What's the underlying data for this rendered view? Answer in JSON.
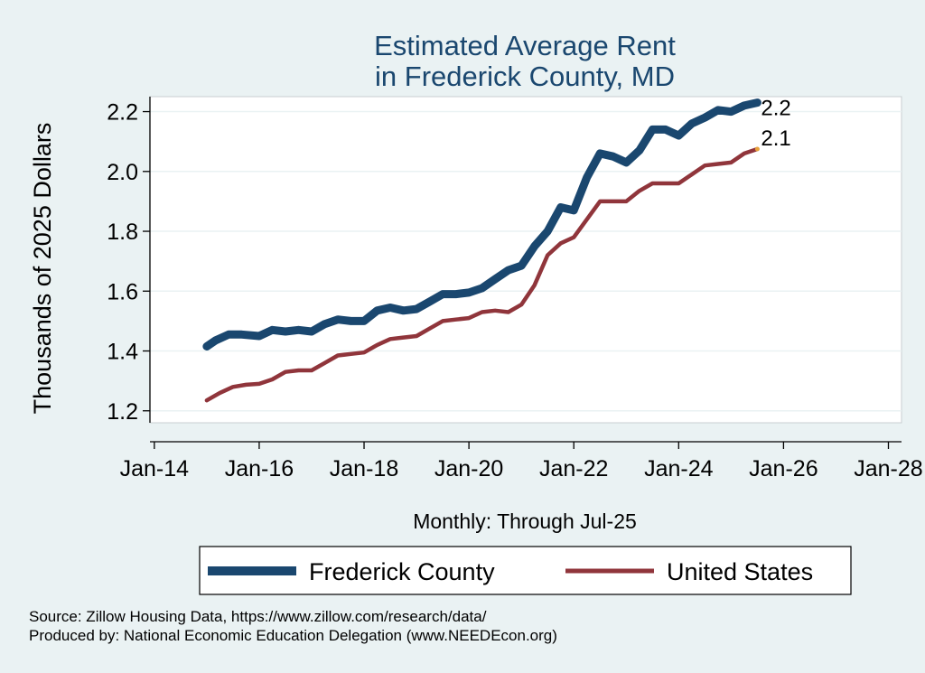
{
  "chart_data": {
    "type": "line",
    "title": [
      "Estimated Average Rent",
      "in Frederick County, MD"
    ],
    "ylabel": "Thousands of 2025 Dollars",
    "xlabel": "Monthly: Through Jul-25",
    "ylim": [
      1.16,
      2.25
    ],
    "yticks": [
      1.2,
      1.4,
      1.6,
      1.8,
      2.0,
      2.2
    ],
    "ytick_labels": [
      "1.2",
      "1.4",
      "1.6",
      "1.8",
      "2.0",
      "2.2"
    ],
    "xlim": [
      "2013-12",
      "2028-04"
    ],
    "xticks": [
      "2014-01",
      "2016-01",
      "2018-01",
      "2020-01",
      "2022-01",
      "2024-01",
      "2026-01",
      "2028-01"
    ],
    "xtick_labels": [
      "Jan-14",
      "Jan-16",
      "Jan-18",
      "Jan-20",
      "Jan-22",
      "Jan-24",
      "Jan-26",
      "Jan-28"
    ],
    "grid": true,
    "legend_position": "bottom",
    "series": [
      {
        "name": "Frederick County",
        "color": "#1a476f",
        "end_label": "2.2",
        "points": [
          [
            "2015-01",
            1.415
          ],
          [
            "2015-03",
            1.435
          ],
          [
            "2015-06",
            1.455
          ],
          [
            "2015-09",
            1.455
          ],
          [
            "2016-01",
            1.45
          ],
          [
            "2016-04",
            1.47
          ],
          [
            "2016-07",
            1.465
          ],
          [
            "2016-10",
            1.47
          ],
          [
            "2017-01",
            1.465
          ],
          [
            "2017-04",
            1.49
          ],
          [
            "2017-07",
            1.505
          ],
          [
            "2017-10",
            1.5
          ],
          [
            "2018-01",
            1.5
          ],
          [
            "2018-04",
            1.535
          ],
          [
            "2018-07",
            1.545
          ],
          [
            "2018-10",
            1.535
          ],
          [
            "2019-01",
            1.54
          ],
          [
            "2019-04",
            1.565
          ],
          [
            "2019-07",
            1.59
          ],
          [
            "2019-10",
            1.59
          ],
          [
            "2020-01",
            1.595
          ],
          [
            "2020-04",
            1.61
          ],
          [
            "2020-07",
            1.64
          ],
          [
            "2020-10",
            1.67
          ],
          [
            "2021-01",
            1.685
          ],
          [
            "2021-04",
            1.75
          ],
          [
            "2021-07",
            1.8
          ],
          [
            "2021-10",
            1.88
          ],
          [
            "2022-01",
            1.87
          ],
          [
            "2022-04",
            1.98
          ],
          [
            "2022-07",
            2.06
          ],
          [
            "2022-10",
            2.05
          ],
          [
            "2023-01",
            2.03
          ],
          [
            "2023-04",
            2.07
          ],
          [
            "2023-07",
            2.14
          ],
          [
            "2023-10",
            2.14
          ],
          [
            "2024-01",
            2.12
          ],
          [
            "2024-04",
            2.16
          ],
          [
            "2024-07",
            2.18
          ],
          [
            "2024-10",
            2.205
          ],
          [
            "2025-01",
            2.2
          ],
          [
            "2025-04",
            2.22
          ],
          [
            "2025-07",
            2.23
          ]
        ]
      },
      {
        "name": "United States",
        "color": "#90353b",
        "end_marker_color": "#e8a13a",
        "end_label": "2.1",
        "points": [
          [
            "2015-01",
            1.235
          ],
          [
            "2015-04",
            1.26
          ],
          [
            "2015-07",
            1.28
          ],
          [
            "2015-10",
            1.287
          ],
          [
            "2016-01",
            1.29
          ],
          [
            "2016-04",
            1.305
          ],
          [
            "2016-07",
            1.33
          ],
          [
            "2016-10",
            1.335
          ],
          [
            "2017-01",
            1.335
          ],
          [
            "2017-04",
            1.36
          ],
          [
            "2017-07",
            1.385
          ],
          [
            "2017-10",
            1.39
          ],
          [
            "2018-01",
            1.395
          ],
          [
            "2018-04",
            1.42
          ],
          [
            "2018-07",
            1.44
          ],
          [
            "2018-10",
            1.445
          ],
          [
            "2019-01",
            1.45
          ],
          [
            "2019-04",
            1.475
          ],
          [
            "2019-07",
            1.5
          ],
          [
            "2019-10",
            1.505
          ],
          [
            "2020-01",
            1.51
          ],
          [
            "2020-04",
            1.53
          ],
          [
            "2020-07",
            1.535
          ],
          [
            "2020-10",
            1.53
          ],
          [
            "2021-01",
            1.555
          ],
          [
            "2021-04",
            1.62
          ],
          [
            "2021-07",
            1.72
          ],
          [
            "2021-10",
            1.76
          ],
          [
            "2022-01",
            1.78
          ],
          [
            "2022-04",
            1.84
          ],
          [
            "2022-07",
            1.9
          ],
          [
            "2022-10",
            1.9
          ],
          [
            "2023-01",
            1.9
          ],
          [
            "2023-04",
            1.935
          ],
          [
            "2023-07",
            1.96
          ],
          [
            "2023-10",
            1.96
          ],
          [
            "2024-01",
            1.96
          ],
          [
            "2024-04",
            1.99
          ],
          [
            "2024-07",
            2.02
          ],
          [
            "2024-10",
            2.025
          ],
          [
            "2025-01",
            2.03
          ],
          [
            "2025-04",
            2.06
          ],
          [
            "2025-07",
            2.075
          ]
        ]
      }
    ]
  },
  "footer": {
    "source": "Source: Zillow Housing Data, https://www.zillow.com/research/data/",
    "produced_by": "Produced by: National Economic Education Delegation (www.NEEDEcon.org)"
  }
}
